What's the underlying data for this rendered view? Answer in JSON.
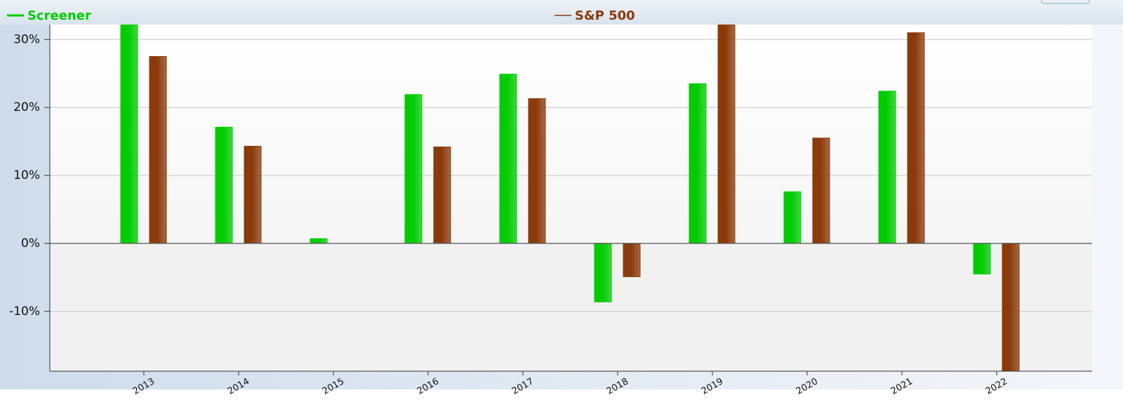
{
  "chart_data": {
    "type": "bar",
    "categories": [
      "2013",
      "2014",
      "2015",
      "2016",
      "2017",
      "2018",
      "2019",
      "2020",
      "2021",
      "2022"
    ],
    "series": [
      {
        "name": "Screener",
        "color": "#00cc00",
        "values": [
          32.2,
          17.1,
          0.7,
          21.9,
          24.9,
          -8.6,
          23.5,
          7.6,
          22.4,
          -4.5
        ]
      },
      {
        "name": "S&P 500",
        "color": "#8b3a0a",
        "values": [
          27.5,
          14.3,
          0,
          14.2,
          21.3,
          -4.9,
          32.2,
          15.5,
          31.0,
          -18.8
        ]
      }
    ],
    "ylim": [
      -18.8,
      32.2
    ],
    "yticks": [
      {
        "value": -10,
        "label": "-10%"
      },
      {
        "value": 0,
        "label": "0%"
      },
      {
        "value": 10,
        "label": "10%"
      },
      {
        "value": 20,
        "label": "20%"
      },
      {
        "value": 30,
        "label": "30%"
      }
    ],
    "grid": true
  }
}
